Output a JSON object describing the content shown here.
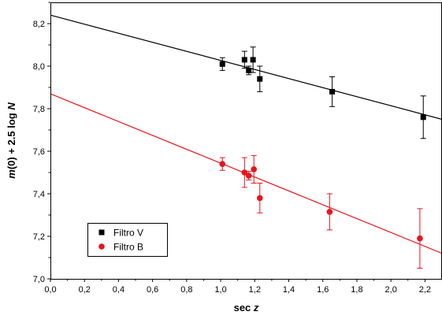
{
  "chart_data": {
    "type": "scatter",
    "title": "",
    "xlabel": {
      "main": "sec ",
      "italic": "z"
    },
    "ylabel": {
      "italic_m": "m",
      "rest": "(0) + 2.5 log ",
      "italic_n": "N"
    },
    "xlim": [
      0.0,
      2.3
    ],
    "ylim": [
      7.0,
      8.3
    ],
    "x_ticks": [
      "0,0",
      "0,2",
      "0,4",
      "0,6",
      "0,8",
      "1,0",
      "1,2",
      "1,4",
      "1,6",
      "1,8",
      "2,0",
      "2,2"
    ],
    "x_tick_values": [
      0.0,
      0.2,
      0.4,
      0.6,
      0.8,
      1.0,
      1.2,
      1.4,
      1.6,
      1.8,
      2.0,
      2.2
    ],
    "y_ticks": [
      "7,0",
      "7,2",
      "7,4",
      "7,6",
      "7,8",
      "8,0",
      "8,2"
    ],
    "y_tick_values": [
      7.0,
      7.2,
      7.4,
      7.6,
      7.8,
      8.0,
      8.2
    ],
    "grid": false,
    "legend_position": "bottom-left",
    "series": [
      {
        "name": "Filtro V",
        "marker": "square",
        "color": "#000000",
        "x": [
          1.01,
          1.14,
          1.165,
          1.19,
          1.23,
          1.655,
          2.19
        ],
        "y": [
          8.01,
          8.03,
          7.98,
          8.03,
          7.94,
          7.88,
          7.76
        ],
        "err": [
          0.03,
          0.04,
          0.02,
          0.06,
          0.06,
          0.07,
          0.1
        ],
        "fit": {
          "x": [
            0.0,
            2.3
          ],
          "y": [
            8.24,
            7.75
          ]
        }
      },
      {
        "name": "Filtro B",
        "marker": "circle",
        "color": "#e8141c",
        "x": [
          1.01,
          1.14,
          1.165,
          1.195,
          1.23,
          1.64,
          2.17
        ],
        "y": [
          7.54,
          7.5,
          7.485,
          7.515,
          7.38,
          7.315,
          7.19
        ],
        "err": [
          0.03,
          0.07,
          0.02,
          0.065,
          0.07,
          0.085,
          0.14
        ],
        "fit": {
          "x": [
            0.0,
            2.3
          ],
          "y": [
            7.87,
            7.12
          ]
        }
      }
    ]
  }
}
